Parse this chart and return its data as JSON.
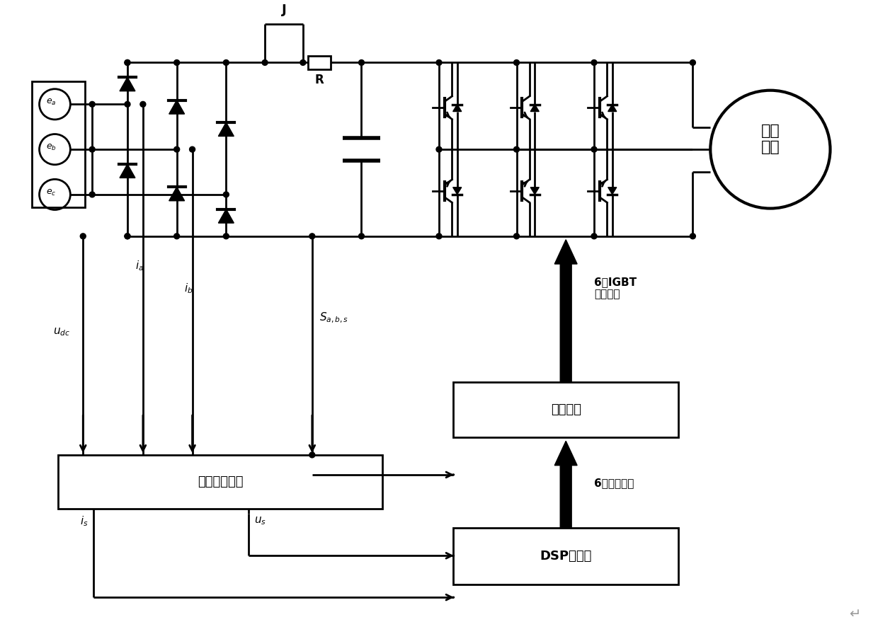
{
  "bg_color": "#ffffff",
  "lc": "#000000",
  "lw": 2.0,
  "fig_w": 12.4,
  "fig_h": 8.96,
  "motor_label": "永磁\n电机",
  "vc_label": "电压电流采样",
  "drv_label": "驱动电路",
  "dsp_label": "DSP控制器",
  "igbt_txt": "6路IGBT\n驱动脉冲",
  "sw_txt": "6路开关信号"
}
